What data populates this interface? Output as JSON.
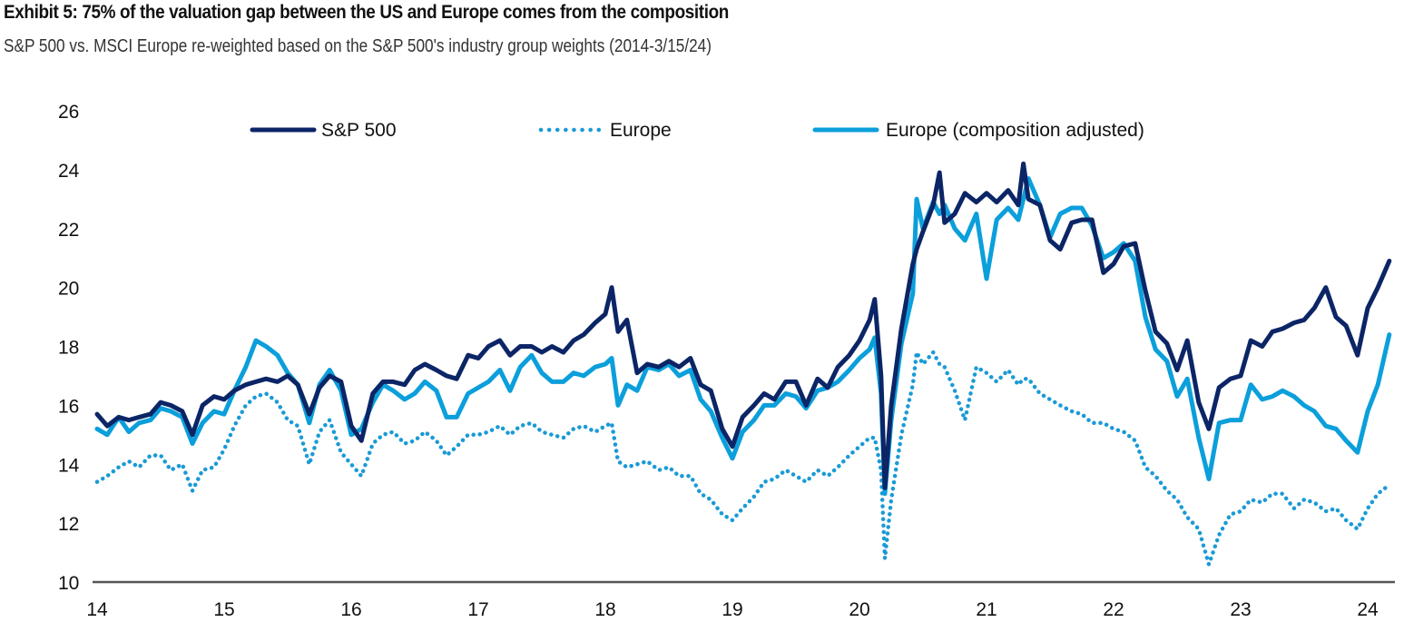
{
  "header": {
    "title": "Exhibit 5: 75% of the valuation gap between the US and Europe comes from the composition",
    "subtitle": "S&P 500 vs. MSCI Europe re-weighted based on the S&P 500's industry group weights (2014-3/15/24)"
  },
  "chart_data": {
    "type": "line",
    "title": "Exhibit 5: 75% of the valuation gap between the US and Europe comes from the composition",
    "subtitle": "S&P 500 vs. MSCI Europe re-weighted based on the S&P 500's industry group weights (2014-3/15/24)",
    "xlabel": "",
    "ylabel": "",
    "xlim": [
      14,
      24.2
    ],
    "ylim": [
      10,
      26
    ],
    "xticks": [
      14,
      15,
      16,
      17,
      18,
      19,
      20,
      21,
      22,
      23,
      24
    ],
    "xtick_labels": [
      "14",
      "15",
      "16",
      "17",
      "18",
      "19",
      "20",
      "21",
      "22",
      "23",
      "24"
    ],
    "yticks": [
      10,
      12,
      14,
      16,
      18,
      20,
      22,
      24,
      26
    ],
    "ytick_labels": [
      "10",
      "12",
      "14",
      "16",
      "18",
      "20",
      "22",
      "24",
      "26"
    ],
    "grid": false,
    "legend_position": "top",
    "x": [
      14.0,
      14.08,
      14.17,
      14.25,
      14.33,
      14.42,
      14.5,
      14.58,
      14.67,
      14.75,
      14.83,
      14.92,
      15.0,
      15.08,
      15.17,
      15.25,
      15.33,
      15.42,
      15.5,
      15.58,
      15.67,
      15.75,
      15.83,
      15.92,
      16.0,
      16.08,
      16.17,
      16.25,
      16.33,
      16.42,
      16.5,
      16.58,
      16.67,
      16.75,
      16.83,
      16.92,
      17.0,
      17.08,
      17.17,
      17.25,
      17.33,
      17.42,
      17.5,
      17.58,
      17.67,
      17.75,
      17.83,
      17.92,
      18.0,
      18.05,
      18.1,
      18.17,
      18.25,
      18.33,
      18.42,
      18.5,
      18.58,
      18.67,
      18.75,
      18.83,
      18.92,
      19.0,
      19.08,
      19.17,
      19.25,
      19.33,
      19.42,
      19.5,
      19.58,
      19.67,
      19.75,
      19.83,
      19.92,
      20.0,
      20.08,
      20.12,
      20.17,
      20.2,
      20.25,
      20.33,
      20.42,
      20.45,
      20.5,
      20.58,
      20.63,
      20.67,
      20.75,
      20.83,
      20.92,
      21.0,
      21.08,
      21.17,
      21.25,
      21.29,
      21.33,
      21.42,
      21.5,
      21.58,
      21.67,
      21.75,
      21.83,
      21.92,
      22.0,
      22.08,
      22.17,
      22.25,
      22.33,
      22.42,
      22.5,
      22.58,
      22.67,
      22.75,
      22.83,
      22.92,
      23.0,
      23.08,
      23.17,
      23.25,
      23.33,
      23.42,
      23.5,
      23.58,
      23.67,
      23.75,
      23.83,
      23.92,
      24.0,
      24.08,
      24.17
    ],
    "series": [
      {
        "name": "S&P 500",
        "color": "#0b2566",
        "style": "solid",
        "values": [
          15.7,
          15.3,
          15.6,
          15.5,
          15.6,
          15.7,
          16.1,
          16.0,
          15.8,
          15.0,
          16.0,
          16.3,
          16.2,
          16.5,
          16.7,
          16.8,
          16.9,
          16.8,
          17.0,
          16.7,
          15.7,
          16.6,
          17.0,
          16.8,
          15.3,
          14.8,
          16.4,
          16.8,
          16.8,
          16.7,
          17.2,
          17.4,
          17.2,
          17.0,
          16.9,
          17.7,
          17.6,
          18.0,
          18.2,
          17.7,
          18.0,
          18.0,
          17.8,
          18.0,
          17.8,
          18.2,
          18.4,
          18.8,
          19.1,
          20.0,
          18.5,
          18.9,
          17.1,
          17.4,
          17.3,
          17.5,
          17.3,
          17.6,
          16.7,
          16.5,
          15.2,
          14.6,
          15.6,
          16.0,
          16.4,
          16.2,
          16.8,
          16.8,
          16.0,
          16.9,
          16.6,
          17.3,
          17.7,
          18.2,
          18.9,
          19.6,
          17.0,
          13.2,
          16.0,
          18.6,
          20.8,
          21.3,
          21.9,
          22.8,
          23.9,
          22.2,
          22.5,
          23.2,
          22.9,
          23.2,
          22.9,
          23.3,
          22.8,
          24.2,
          23.0,
          22.8,
          21.6,
          21.3,
          22.2,
          22.3,
          22.3,
          20.5,
          20.8,
          21.4,
          21.5,
          19.9,
          18.5,
          18.1,
          17.2,
          18.2,
          16.1,
          15.2,
          16.6,
          16.9,
          17.0,
          18.2,
          18.0,
          18.5,
          18.6,
          18.8,
          18.9,
          19.3,
          20.0,
          19.0,
          18.7,
          17.7,
          19.3,
          20.0,
          20.9
        ]
      },
      {
        "name": "Europe",
        "color": "#1a9ad6",
        "style": "dotted",
        "values": [
          13.4,
          13.6,
          13.9,
          14.1,
          13.9,
          14.3,
          14.3,
          13.8,
          14.0,
          13.1,
          13.8,
          13.9,
          14.5,
          15.3,
          16.0,
          16.3,
          16.4,
          16.1,
          15.5,
          15.3,
          14.0,
          15.1,
          15.5,
          14.4,
          14.0,
          13.6,
          14.7,
          15.0,
          15.1,
          14.7,
          14.8,
          15.1,
          14.8,
          14.3,
          14.6,
          15.0,
          15.0,
          15.1,
          15.3,
          15.0,
          15.3,
          15.4,
          15.1,
          15.0,
          14.9,
          15.2,
          15.3,
          15.1,
          15.3,
          15.4,
          14.1,
          13.9,
          14.0,
          14.1,
          13.8,
          13.9,
          13.6,
          13.6,
          13.0,
          12.8,
          12.3,
          12.1,
          12.5,
          12.9,
          13.4,
          13.5,
          13.8,
          13.6,
          13.4,
          13.8,
          13.6,
          13.9,
          14.3,
          14.6,
          14.9,
          14.9,
          13.8,
          10.8,
          12.8,
          15.0,
          16.7,
          17.8,
          17.4,
          17.8,
          17.4,
          17.3,
          16.5,
          15.5,
          17.3,
          17.1,
          16.8,
          17.2,
          16.7,
          16.9,
          16.9,
          16.4,
          16.2,
          16.0,
          15.8,
          15.7,
          15.4,
          15.4,
          15.2,
          15.1,
          14.8,
          13.9,
          13.6,
          13.1,
          12.8,
          12.2,
          11.8,
          10.6,
          11.6,
          12.3,
          12.4,
          12.8,
          12.7,
          13.0,
          13.0,
          12.5,
          12.8,
          12.7,
          12.4,
          12.5,
          12.1,
          11.8,
          12.5,
          13.0,
          13.3
        ]
      },
      {
        "name": "Europe (composition adjusted)",
        "color": "#0b9fdb",
        "style": "solid",
        "values": [
          15.2,
          15.0,
          15.6,
          15.1,
          15.4,
          15.5,
          15.9,
          15.8,
          15.6,
          14.7,
          15.4,
          15.8,
          15.7,
          16.5,
          17.3,
          18.2,
          18.0,
          17.7,
          17.1,
          16.7,
          15.4,
          16.7,
          17.2,
          16.5,
          15.0,
          15.2,
          16.1,
          16.7,
          16.5,
          16.2,
          16.4,
          16.8,
          16.5,
          15.6,
          15.6,
          16.4,
          16.6,
          16.8,
          17.2,
          16.5,
          17.3,
          17.7,
          17.1,
          16.8,
          16.8,
          17.1,
          17.0,
          17.3,
          17.4,
          17.6,
          16.0,
          16.7,
          16.5,
          17.3,
          17.2,
          17.4,
          17.0,
          17.2,
          16.2,
          15.8,
          14.9,
          14.2,
          15.1,
          15.5,
          16.0,
          16.0,
          16.4,
          16.3,
          15.9,
          16.5,
          16.6,
          16.8,
          17.2,
          17.6,
          17.9,
          18.3,
          16.4,
          13.0,
          15.5,
          18.1,
          19.8,
          23.0,
          22.0,
          22.9,
          22.5,
          22.8,
          22.0,
          21.6,
          22.5,
          20.3,
          22.3,
          22.7,
          22.3,
          23.0,
          23.7,
          22.8,
          21.7,
          22.5,
          22.7,
          22.7,
          22.1,
          21.0,
          21.2,
          21.5,
          20.9,
          19.0,
          17.9,
          17.5,
          16.3,
          16.9,
          14.9,
          13.5,
          15.4,
          15.5,
          15.5,
          16.7,
          16.2,
          16.3,
          16.5,
          16.3,
          16.0,
          15.8,
          15.3,
          15.2,
          14.8,
          14.4,
          15.8,
          16.7,
          18.4
        ]
      }
    ]
  }
}
